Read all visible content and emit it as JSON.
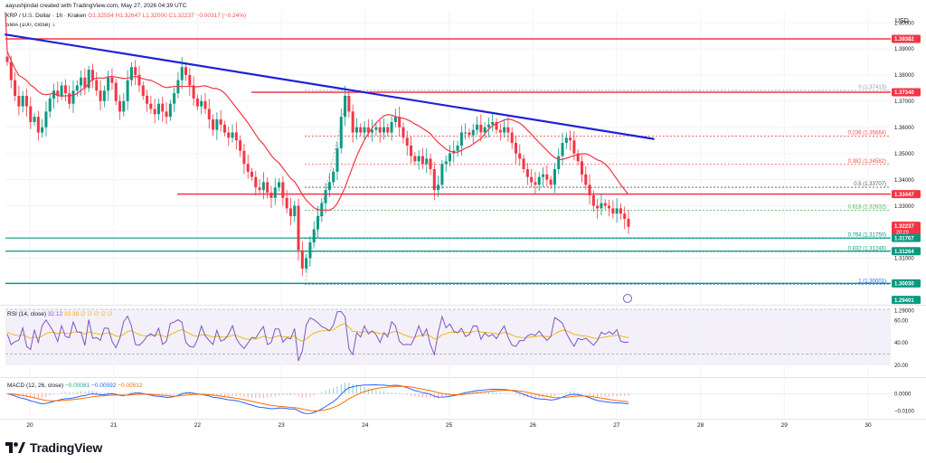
{
  "header": {
    "published": "aayushjindal created with TradingView.com, May 27, 2026 04:39 UTC",
    "symbol": "XRP / U.S. Dollar · 1h · Kraken",
    "ohlc": "O1.32554 H1.32647 L1.32000 C1.32237 −0.00317 (−0.24%)",
    "sma_label": "SMA (100, close)",
    "sma_value": "1"
  },
  "price_axis": {
    "currency": "USD",
    "ticks": [
      "1.40000",
      "1.39000",
      "1.38000",
      "1.37000",
      "1.36000",
      "1.35000",
      "1.34000",
      "1.33000",
      "1.32000",
      "1.31000",
      "1.29000"
    ],
    "tags": [
      {
        "label": "1.39382",
        "color": "#f23645",
        "value": 1.3938
      },
      {
        "label": "1.37340",
        "color": "#f23645",
        "value": 1.3734
      },
      {
        "label": "1.33447",
        "color": "#f23645",
        "value": 1.33447
      },
      {
        "label": "1.32237",
        "color": "#f23645",
        "value": 1.32237,
        "sub": "20:29"
      },
      {
        "label": "1.31767",
        "color": "#089981",
        "value": 1.31767
      },
      {
        "label": "1.31264",
        "color": "#089981",
        "value": 1.31264
      },
      {
        "label": "1.30030",
        "color": "#089981",
        "value": 1.3003
      },
      {
        "label": "1.29401",
        "color": "#089981",
        "value": 1.29401
      }
    ]
  },
  "fib_labels": [
    {
      "text": "0 (1.37413)",
      "value": 1.37413
    },
    {
      "text": "0.236 (1.35664)",
      "value": 1.35664
    },
    {
      "text": "0.382 (1.34582)",
      "value": 1.34582
    },
    {
      "text": "0.5 (1.33707)",
      "value": 1.33707
    },
    {
      "text": "0.618 (1.32832)",
      "value": 1.32832
    },
    {
      "text": "0.764 (1.31750)",
      "value": 1.3175
    },
    {
      "text": "0.832 (1.31246)",
      "value": 1.31246
    },
    {
      "text": "1 (1.30001)",
      "value": 1.30001
    }
  ],
  "rsi": {
    "legend": "RSI (14, close)",
    "value": "32.12",
    "extra": "33.38 ∅ ∅ ∅ ∅ ∅",
    "ticks": [
      "60.00",
      "40.00",
      "20.00"
    ]
  },
  "macd": {
    "legend": "MACD (12, 26, close)",
    "v1": "−0.00081",
    "v2": "−0.00592",
    "v3": "−0.00512",
    "ticks": [
      "0.0000",
      "−0.0100"
    ]
  },
  "time_axis": [
    "20",
    "21",
    "22",
    "23",
    "24",
    "25",
    "26",
    "27",
    "28",
    "29",
    "30"
  ],
  "brand": "TradingView",
  "chart_data": {
    "type": "candlestick",
    "timeframe": "1h",
    "x_labels": [
      "20",
      "21",
      "22",
      "23",
      "24",
      "25",
      "26",
      "27",
      "28",
      "29",
      "30"
    ],
    "y_range": [
      1.2925,
      1.4045
    ],
    "horizontal_levels": {
      "resistance_red": [
        1.3938,
        1.3734,
        1.33447
      ],
      "support_green": [
        1.31767,
        1.31264,
        1.3003
      ]
    },
    "trendline": {
      "from": {
        "day": 19.7,
        "price": 1.3955
      },
      "to": {
        "day": 27.45,
        "price": 1.3555
      },
      "color": "#1e22d6"
    },
    "fib_anchor": {
      "high": 1.37413,
      "low": 1.30001
    },
    "closes": [
      1.385,
      1.378,
      1.372,
      1.368,
      1.372,
      1.368,
      1.362,
      1.364,
      1.358,
      1.36,
      1.366,
      1.371,
      1.374,
      1.372,
      1.376,
      1.373,
      1.369,
      1.374,
      1.376,
      1.379,
      1.375,
      1.382,
      1.378,
      1.374,
      1.37,
      1.374,
      1.379,
      1.377,
      1.37,
      1.366,
      1.37,
      1.378,
      1.383,
      1.38,
      1.376,
      1.372,
      1.369,
      1.367,
      1.365,
      1.369,
      1.366,
      1.364,
      1.369,
      1.373,
      1.378,
      1.383,
      1.38,
      1.376,
      1.371,
      1.368,
      1.37,
      1.367,
      1.363,
      1.359,
      1.363,
      1.361,
      1.358,
      1.356,
      1.358,
      1.355,
      1.351,
      1.346,
      1.343,
      1.341,
      1.337,
      1.336,
      1.339,
      1.335,
      1.333,
      1.337,
      1.339,
      1.333,
      1.329,
      1.326,
      1.33,
      1.313,
      1.306,
      1.31,
      1.316,
      1.321,
      1.326,
      1.331,
      1.336,
      1.339,
      1.343,
      1.352,
      1.364,
      1.372,
      1.366,
      1.358,
      1.36,
      1.358,
      1.36,
      1.358,
      1.359,
      1.36,
      1.358,
      1.36,
      1.358,
      1.362,
      1.364,
      1.36,
      1.356,
      1.353,
      1.349,
      1.347,
      1.349,
      1.346,
      1.348,
      1.344,
      1.336,
      1.338,
      1.346,
      1.347,
      1.35,
      1.351,
      1.353,
      1.358,
      1.358,
      1.357,
      1.359,
      1.361,
      1.358,
      1.36,
      1.361,
      1.362,
      1.359,
      1.358,
      1.36,
      1.358,
      1.354,
      1.35,
      1.348,
      1.344,
      1.341,
      1.339,
      1.338,
      1.341,
      1.342,
      1.34,
      1.338,
      1.344,
      1.349,
      1.354,
      1.356,
      1.355,
      1.35,
      1.347,
      1.342,
      1.338,
      1.334,
      1.33,
      1.329,
      1.331,
      1.33,
      1.329,
      1.327,
      1.329,
      1.327,
      1.325,
      1.322
    ],
    "sma100_color": "#f23645",
    "rsi_range": [
      20,
      70
    ],
    "rsi_levels": [
      70,
      30
    ],
    "macd_range": [
      -0.013,
      0.005
    ]
  }
}
